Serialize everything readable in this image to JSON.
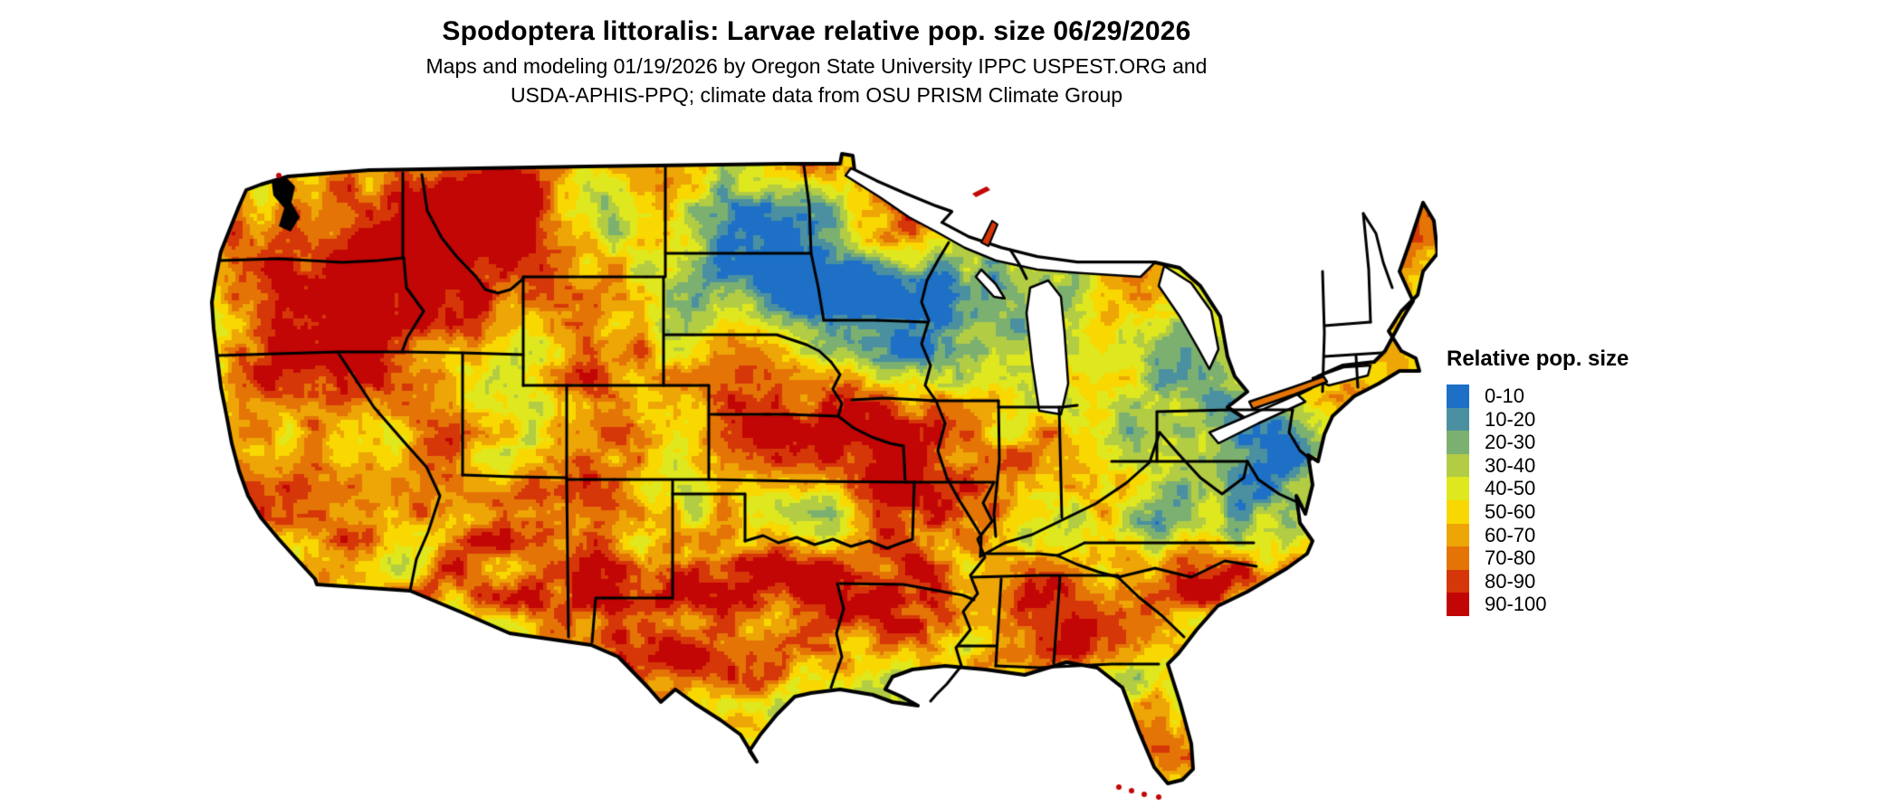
{
  "header": {
    "title": "Spodoptera littoralis: Larvae relative pop. size 06/29/2026",
    "subtitle_line1": "Maps and modeling 01/19/2026 by Oregon State University IPPC USPEST.ORG and",
    "subtitle_line2": "USDA-APHIS-PPQ; climate data from OSU PRISM Climate Group"
  },
  "legend": {
    "title": "Relative pop. size",
    "items": [
      {
        "label": "0-10",
        "color": "#1d70c6"
      },
      {
        "label": "10-20",
        "color": "#4a90a0"
      },
      {
        "label": "20-30",
        "color": "#7cb070"
      },
      {
        "label": "30-40",
        "color": "#b2cc44"
      },
      {
        "label": "40-50",
        "color": "#dfe81e"
      },
      {
        "label": "50-60",
        "color": "#f8d800"
      },
      {
        "label": "60-70",
        "color": "#eea506"
      },
      {
        "label": "70-80",
        "color": "#e47406"
      },
      {
        "label": "80-90",
        "color": "#d63708"
      },
      {
        "label": "90-100",
        "color": "#c20505"
      }
    ]
  },
  "map": {
    "border_color": "#000000",
    "water_color": "#ffffff"
  }
}
